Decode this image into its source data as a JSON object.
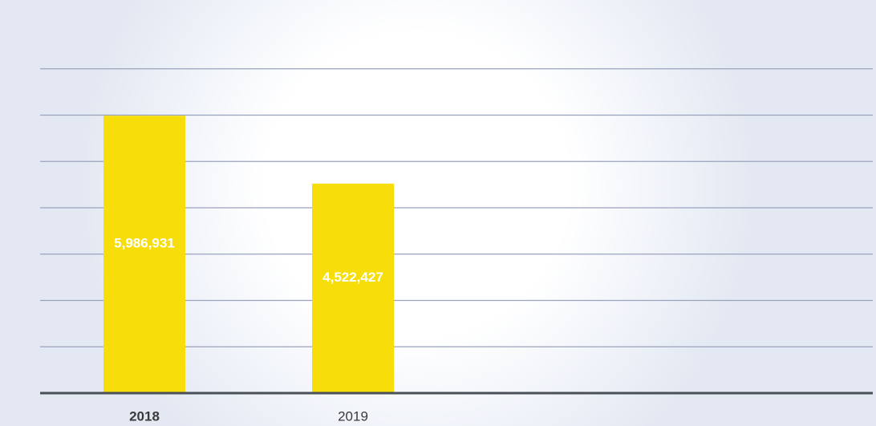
{
  "chart_data": {
    "type": "bar",
    "categories": [
      "2018",
      "2019"
    ],
    "values": [
      5986931,
      4522427
    ],
    "value_labels": [
      "5,986,931",
      "4,522,427"
    ],
    "title": "",
    "xlabel": "",
    "ylabel": "",
    "ylim": [
      0,
      8000000
    ],
    "grid": true,
    "legend": "none",
    "colors": {
      "bar": "#f7dd0a",
      "label_text": "#ffffff",
      "tick_text": "#3a3a3a",
      "gridline": "#9aa3bd",
      "baseline": "#4a5057"
    }
  }
}
